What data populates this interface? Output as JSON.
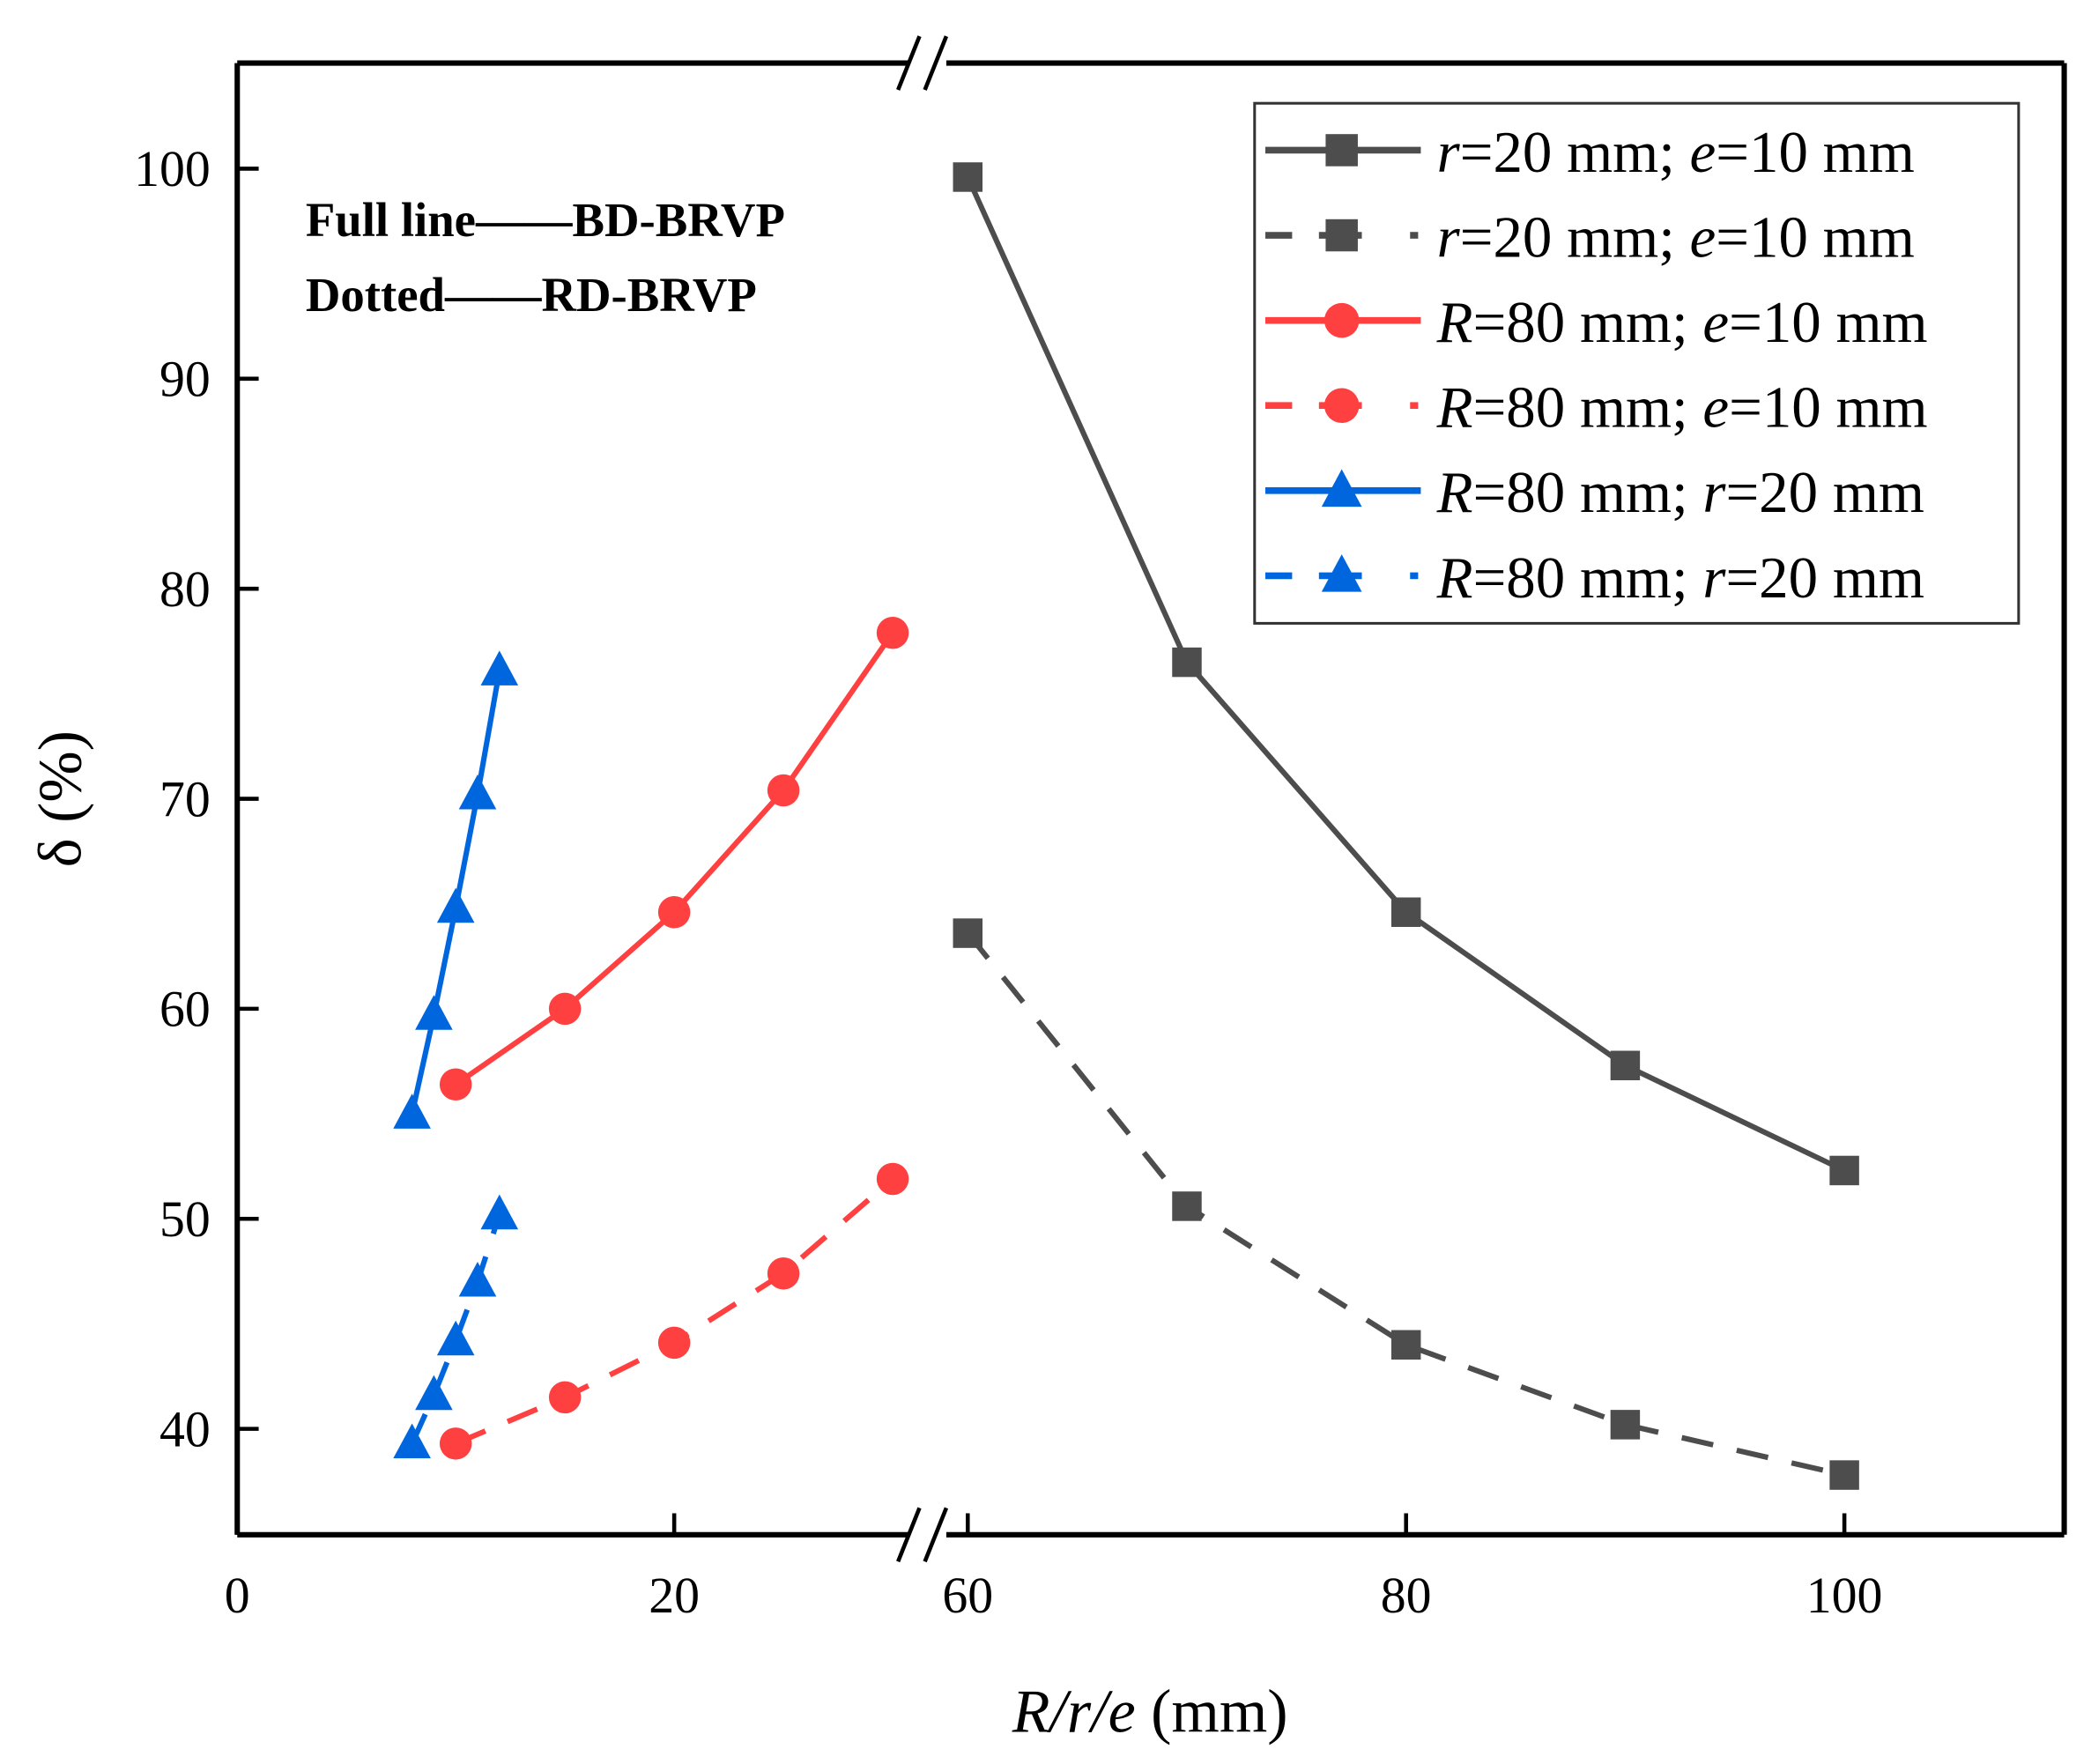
{
  "chart_data": {
    "type": "line",
    "title": "",
    "xlabel": "R/r/e (mm)",
    "ylabel": "δ (%)",
    "xlim_segments": [
      [
        0,
        31
      ],
      [
        60,
        110
      ]
    ],
    "x_axis_break": true,
    "ylim": [
      35,
      105
    ],
    "xticks": [
      0,
      20,
      60,
      80,
      100
    ],
    "yticks": [
      40,
      50,
      60,
      70,
      80,
      90,
      100
    ],
    "grid": false,
    "legend_position": "top-right",
    "annotation": [
      "Full line——BD-BRVP",
      "Dotted——RD-BRVP"
    ],
    "series": [
      {
        "name": "r=20 mm; e=10 mm",
        "style": "solid",
        "marker": "square",
        "color": "#4d4d4d",
        "x": [
          60,
          70,
          80,
          90,
          100
        ],
        "y": [
          99.6,
          76.5,
          64.6,
          57.3,
          52.3
        ]
      },
      {
        "name": "r=20 mm; e=10 mm",
        "style": "dashed",
        "marker": "square",
        "color": "#4d4d4d",
        "x": [
          60,
          70,
          80,
          90,
          100
        ],
        "y": [
          63.6,
          50.6,
          44.0,
          40.2,
          37.8
        ]
      },
      {
        "name": "R=80 mm; e=10 mm",
        "style": "solid",
        "marker": "circle",
        "color": "#ff4040",
        "x": [
          10,
          15,
          20,
          25,
          30
        ],
        "y": [
          56.4,
          60.0,
          64.6,
          70.4,
          77.9
        ]
      },
      {
        "name": "R=80 mm; e=10 mm",
        "style": "dashed",
        "marker": "circle",
        "color": "#ff4040",
        "x": [
          10,
          15,
          20,
          25,
          30
        ],
        "y": [
          39.3,
          41.5,
          44.1,
          47.4,
          51.9
        ]
      },
      {
        "name": "R=80 mm; r=20 mm",
        "style": "solid",
        "marker": "triangle",
        "color": "#0066dd",
        "x": [
          8,
          9,
          10,
          11,
          12
        ],
        "y": [
          55.0,
          59.7,
          64.8,
          70.2,
          76.1
        ]
      },
      {
        "name": "R=80 mm; r=20 mm",
        "style": "dashed",
        "marker": "triangle",
        "color": "#0066dd",
        "x": [
          8,
          9,
          10,
          11,
          12
        ],
        "y": [
          39.3,
          41.6,
          44.2,
          47.0,
          50.2
        ]
      }
    ]
  }
}
